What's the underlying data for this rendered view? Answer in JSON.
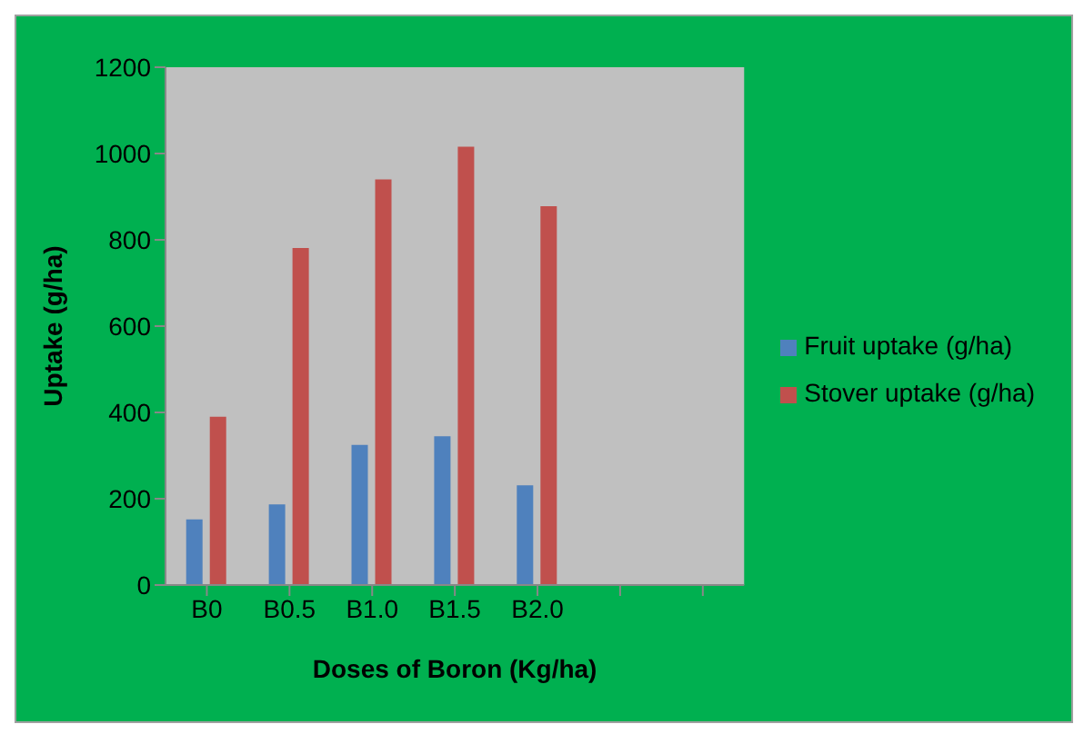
{
  "chart_data": {
    "type": "bar",
    "xlabel": "Doses of Boron (Kg/ha)",
    "ylabel": "Uptake (g/ha)",
    "categories": [
      "B0",
      "B0.5",
      "B1.0",
      "B1.5",
      "B2.0",
      null,
      null
    ],
    "series": [
      {
        "name": "Fruit uptake (g/ha)",
        "color": "#4f81bd",
        "values": [
          152,
          187,
          325,
          345,
          231,
          null,
          null
        ]
      },
      {
        "name": "Stover uptake (g/ha)",
        "color": "#c0504d",
        "values": [
          390,
          781,
          940,
          1016,
          878,
          null,
          null
        ]
      }
    ],
    "ylim": [
      0,
      1200
    ],
    "yticks": [
      0,
      200,
      400,
      600,
      800,
      1000,
      1200
    ],
    "grid": false,
    "legend": "right"
  }
}
